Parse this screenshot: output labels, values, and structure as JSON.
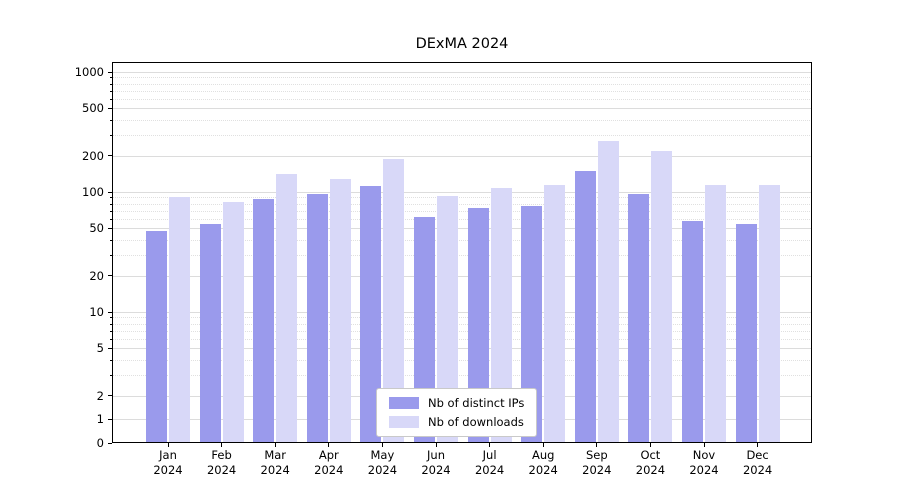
{
  "chart_data": {
    "type": "bar",
    "title": "DExMA 2024",
    "categories": [
      "Jan 2024",
      "Feb 2024",
      "Mar 2024",
      "Apr 2024",
      "May 2024",
      "Jun 2024",
      "Jul 2024",
      "Aug 2024",
      "Sep 2024",
      "Oct 2024",
      "Nov 2024",
      "Dec 2024"
    ],
    "series": [
      {
        "name": "Nb of distinct IPs",
        "color": "#9a9aec",
        "values": [
          47,
          54,
          88,
          96,
          113,
          62,
          74,
          77,
          150,
          96,
          57,
          54
        ]
      },
      {
        "name": "Nb of downloads",
        "color": "#d8d8f8",
        "values": [
          90,
          82,
          140,
          128,
          190,
          93,
          108,
          115,
          265,
          220,
          115,
          115
        ]
      }
    ],
    "y_ticks": [
      0,
      1,
      2,
      5,
      10,
      20,
      50,
      100,
      200,
      500,
      1000
    ],
    "y_scale": "symlog",
    "ylim": [
      0,
      1200
    ],
    "xlabel": "",
    "ylabel": "",
    "grid": true,
    "legend_position": "lower center"
  }
}
